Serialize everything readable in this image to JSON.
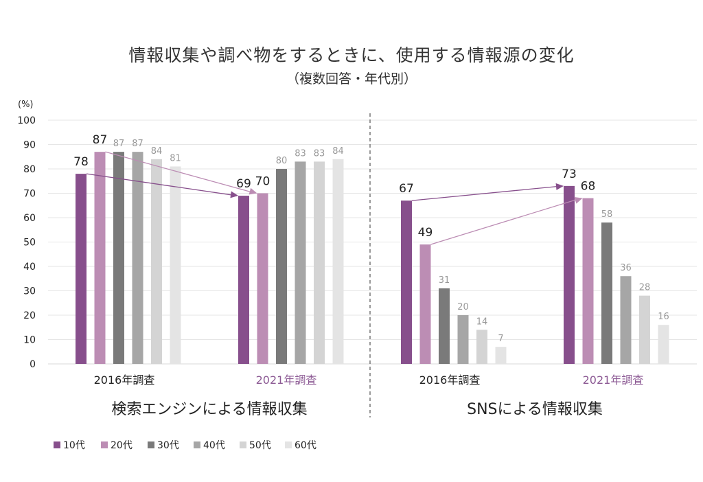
{
  "chart_data": [
    {
      "type": "bar",
      "panel_title": "検索エンジンによる情報収集",
      "categories": [
        "2016年調査",
        "2021年調査"
      ],
      "category_colors": [
        "#222222",
        "#8c5a94"
      ],
      "series": [
        {
          "name": "10代",
          "values": [
            78,
            69
          ]
        },
        {
          "name": "20代",
          "values": [
            87,
            70
          ]
        },
        {
          "name": "30代",
          "values": [
            87,
            80
          ]
        },
        {
          "name": "40代",
          "values": [
            87,
            83
          ]
        },
        {
          "name": "50代",
          "values": [
            84,
            83
          ]
        },
        {
          "name": "60代",
          "values": [
            81,
            84
          ]
        }
      ],
      "highlighted_series": [
        "10代",
        "20代"
      ],
      "arrows": [
        {
          "series": "10代",
          "from": "2016年調査",
          "to": "2021年調査"
        },
        {
          "series": "20代",
          "from": "2016年調査",
          "to": "2021年調査"
        }
      ],
      "ylim": [
        0,
        100
      ],
      "yticks": [
        0,
        10,
        20,
        30,
        40,
        50,
        60,
        70,
        80,
        90,
        100
      ],
      "ylabel": "(%)",
      "grid": true
    },
    {
      "type": "bar",
      "panel_title": "SNSによる情報収集",
      "categories": [
        "2016年調査",
        "2021年調査"
      ],
      "category_colors": [
        "#222222",
        "#8c5a94"
      ],
      "series": [
        {
          "name": "10代",
          "values": [
            67,
            73
          ]
        },
        {
          "name": "20代",
          "values": [
            49,
            68
          ]
        },
        {
          "name": "30代",
          "values": [
            31,
            58
          ]
        },
        {
          "name": "40代",
          "values": [
            20,
            36
          ]
        },
        {
          "name": "50代",
          "values": [
            14,
            28
          ]
        },
        {
          "name": "60代",
          "values": [
            7,
            16
          ]
        }
      ],
      "highlighted_series": [
        "10代",
        "20代"
      ],
      "arrows": [
        {
          "series": "10代",
          "from": "2016年調査",
          "to": "2021年調査"
        },
        {
          "series": "20代",
          "from": "2016年調査",
          "to": "2021年調査"
        }
      ],
      "ylim": [
        0,
        100
      ],
      "grid": true
    }
  ],
  "title": "情報収集や調べ物をするときに、使用する情報源の変化",
  "subtitle": "（複数回答・年代別）",
  "ylabel": "(%)",
  "legend": {
    "placement": "bottom-left",
    "items": [
      {
        "name": "10代",
        "color": "#874f8c"
      },
      {
        "name": "20代",
        "color": "#bc8db4"
      },
      {
        "name": "30代",
        "color": "#7a7a7a"
      },
      {
        "name": "40代",
        "color": "#a6a6a6"
      },
      {
        "name": "50代",
        "color": "#d4d4d4"
      },
      {
        "name": "60代",
        "color": "#e4e4e4"
      }
    ]
  },
  "arrow_colors": {
    "10代": "#874f8c",
    "20代": "#bc8db4"
  }
}
